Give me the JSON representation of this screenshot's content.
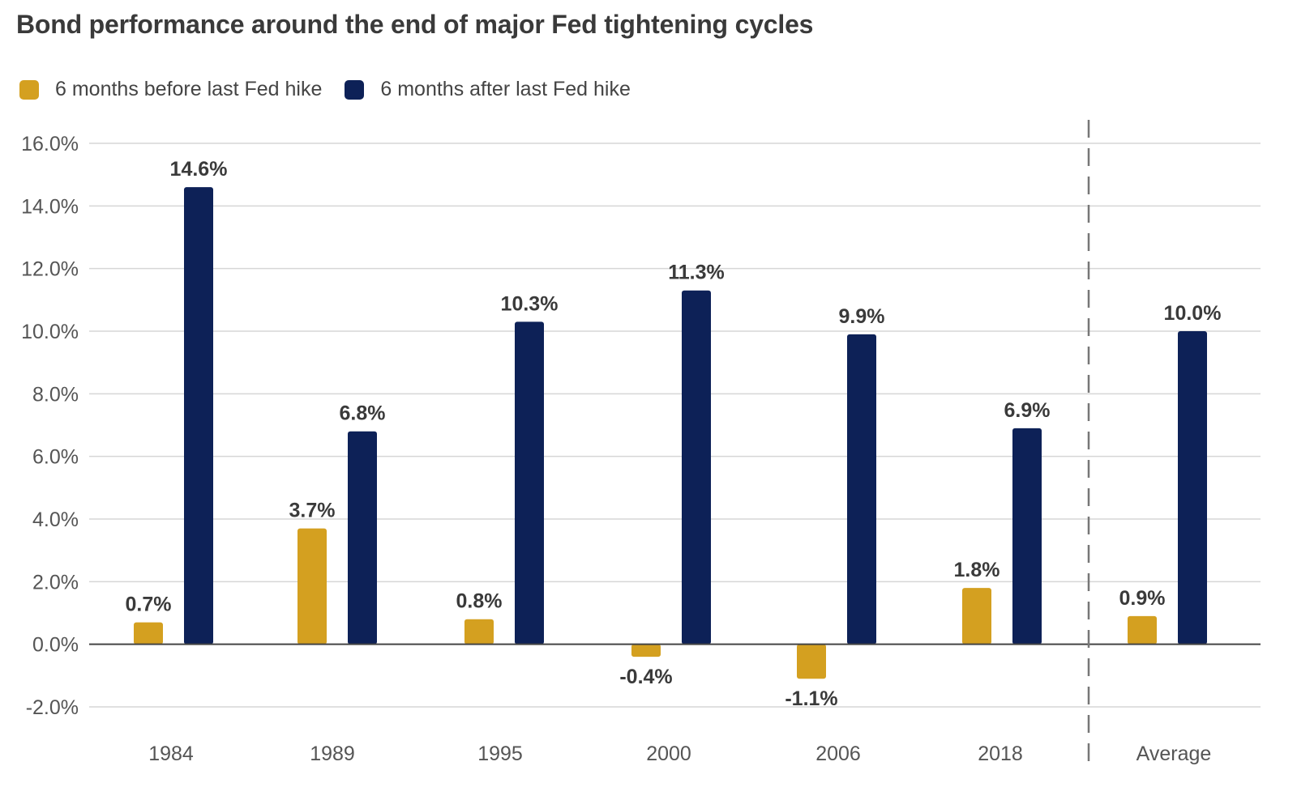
{
  "chart_data": {
    "type": "bar",
    "title": "Bond performance around the end of major Fed tightening cycles",
    "xlabel": "",
    "ylabel": "",
    "categories": [
      "1984",
      "1989",
      "1995",
      "2000",
      "2006",
      "2018",
      "Average"
    ],
    "series": [
      {
        "name": "6 months before last Fed hike",
        "color": "#D4A020",
        "values": [
          0.7,
          3.7,
          0.8,
          -0.4,
          -1.1,
          1.8,
          0.9
        ],
        "labels": [
          "0.7%",
          "3.7%",
          "0.8%",
          "-0.4%",
          "-1.1%",
          "1.8%",
          "0.9%"
        ]
      },
      {
        "name": "6 months after last Fed hike",
        "color": "#0D2157",
        "values": [
          14.6,
          6.8,
          10.3,
          11.3,
          9.9,
          6.9,
          10.0
        ],
        "labels": [
          "14.6%",
          "6.8%",
          "10.3%",
          "11.3%",
          "9.9%",
          "6.9%",
          "10.0%"
        ]
      }
    ],
    "ylim": [
      -2,
      16
    ],
    "yticks": [
      16,
      14,
      12,
      10,
      8,
      6,
      4,
      2,
      0,
      -2
    ],
    "ytick_labels": [
      "16.0%",
      "14.0%",
      "12.0%",
      "10.0%",
      "8.0%",
      "6.0%",
      "4.0%",
      "2.0%",
      "0.0%",
      "-2.0%"
    ],
    "grid": true,
    "legend_position": "top-left",
    "separator_before": "Average"
  }
}
